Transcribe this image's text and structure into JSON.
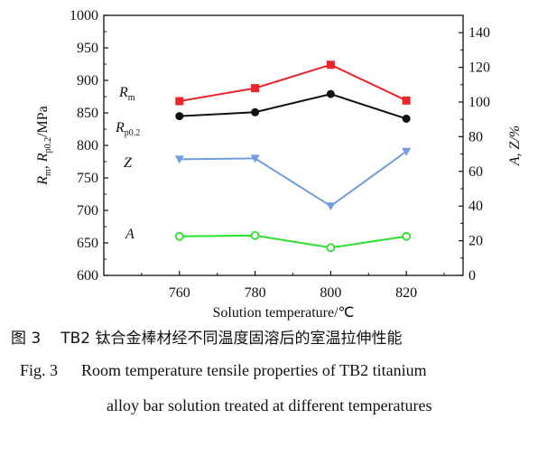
{
  "chart_data": {
    "type": "line",
    "x": [
      760,
      780,
      800,
      820
    ],
    "x_ticks": [
      760,
      780,
      800,
      820
    ],
    "xlim": [
      740,
      835
    ],
    "xlabel": "Solution temperature/℃",
    "left_axis": {
      "label_main": "R",
      "label_sub_m": "m",
      "label_sep": ", ",
      "label_sub_p": "p0.2",
      "label_unit": "/MPa",
      "ylim": [
        600,
        1000
      ],
      "ticks": [
        600,
        650,
        700,
        750,
        800,
        850,
        900,
        950,
        1000
      ]
    },
    "right_axis": {
      "label": "A, Z/%",
      "ylim": [
        0,
        150
      ],
      "ticks": [
        0,
        20,
        40,
        60,
        80,
        100,
        120,
        140
      ]
    },
    "series": [
      {
        "key": "Rm",
        "label_main": "R",
        "label_sub": "m",
        "axis": "left",
        "color": "#e8262b",
        "marker": "square",
        "values": [
          868,
          888,
          924,
          869
        ]
      },
      {
        "key": "Rp02",
        "label_main": "R",
        "label_sub": "p0.2",
        "axis": "left",
        "color": "#111111",
        "marker": "circle",
        "values": [
          845,
          851,
          879,
          841
        ]
      },
      {
        "key": "Z",
        "label_main": "Z",
        "label_sub": "",
        "axis": "right",
        "color": "#6f9de0",
        "marker": "triangle-down",
        "values": [
          67,
          67.5,
          40,
          71.5
        ]
      },
      {
        "key": "A",
        "label_main": "A",
        "label_sub": "",
        "axis": "right",
        "color": "#2ee02e",
        "marker": "circle-open",
        "values": [
          22.5,
          23,
          16,
          22.5
        ]
      }
    ]
  },
  "caption": {
    "cn_number": "图 3",
    "cn_text": "TB2 钛合金棒材经不同温度固溶后的室温拉伸性能",
    "en_number": "Fig. 3",
    "en_line1": "Room temperature tensile properties of TB2 titanium",
    "en_line2": "alloy bar solution treated at different temperatures"
  }
}
